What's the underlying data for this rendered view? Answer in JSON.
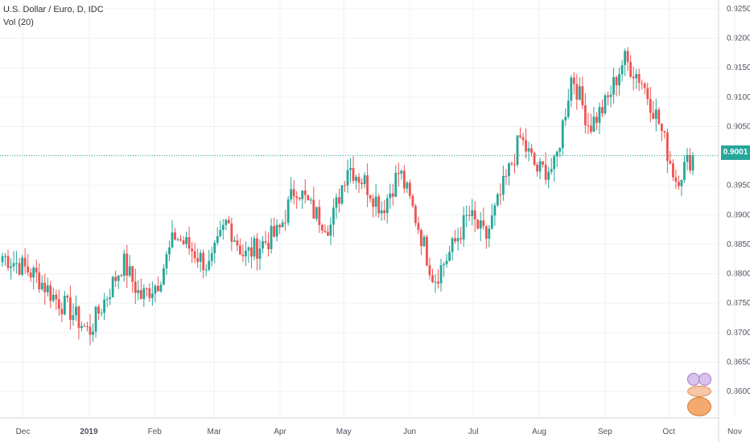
{
  "legend": {
    "symbol": "U.S. Dollar / Euro, D, IDC",
    "indicator": "Vol (20)"
  },
  "last_price": {
    "label": "0.9001",
    "color": "#26a69a"
  },
  "colors": {
    "up": "#26a69a",
    "down": "#ef5350",
    "grid": "#eef0f3",
    "axis_text": "#4c525e",
    "price_line": "#26a69a"
  },
  "chart_data": {
    "type": "candlestick",
    "title": "U.S. Dollar / Euro, D, IDC",
    "ylim": [
      0.8555,
      0.9265
    ],
    "y_ticks": [
      "0.8600",
      "0.8650",
      "0.8700",
      "0.8750",
      "0.8800",
      "0.8850",
      "0.8900",
      "0.8950",
      "0.9000",
      "0.9050",
      "0.9100",
      "0.9150",
      "0.9200",
      "0.9250"
    ],
    "x_ticks": [
      "Dec",
      "2019",
      "Feb",
      "Mar",
      "Apr",
      "May",
      "Jun",
      "Jul",
      "Aug",
      "Sep",
      "Oct",
      "Nov"
    ],
    "period_start": "2018-11-27",
    "anchor_closes": [
      [
        0.883,
        0.883
      ],
      [
        0.8815,
        0.881
      ],
      [
        0.8795,
        0.882
      ],
      [
        0.876,
        0.879
      ],
      [
        0.8735,
        0.874
      ],
      [
        0.87,
        0.869
      ],
      [
        0.876,
        0.8785
      ],
      [
        0.882,
        0.88
      ],
      [
        0.876,
        0.8745
      ],
      [
        0.8785,
        0.881
      ],
      [
        0.8865,
        0.885
      ],
      [
        0.884,
        0.883
      ],
      [
        0.881,
        0.88
      ],
      [
        0.889,
        0.889
      ],
      [
        0.883,
        0.8815
      ],
      [
        0.885,
        0.883
      ],
      [
        0.887,
        0.89
      ],
      [
        0.895,
        0.8935
      ],
      [
        0.8905,
        0.89
      ],
      [
        0.888,
        0.892
      ],
      [
        0.8985,
        0.8985
      ],
      [
        0.8955,
        0.8935
      ],
      [
        0.891,
        0.8925
      ],
      [
        0.8975,
        0.8965
      ],
      [
        0.889,
        0.886
      ],
      [
        0.879,
        0.8785
      ],
      [
        0.884,
        0.886
      ],
      [
        0.89,
        0.8935
      ],
      [
        0.886,
        0.888
      ],
      [
        0.8945,
        0.896
      ],
      [
        0.903,
        0.906
      ],
      [
        0.8975,
        0.896
      ],
      [
        0.898,
        0.904
      ],
      [
        0.914,
        0.912
      ],
      [
        0.905,
        0.904
      ],
      [
        0.909,
        0.912
      ],
      [
        0.9165,
        0.917
      ],
      [
        0.913,
        0.91
      ],
      [
        0.906,
        0.904
      ],
      [
        0.896,
        0.897
      ],
      [
        0.9001,
        0.9001
      ]
    ]
  }
}
